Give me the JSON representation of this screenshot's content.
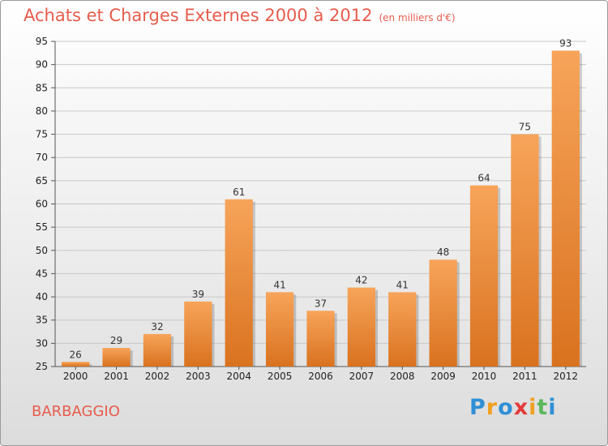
{
  "title": "Achats et Charges Externes 2000 à 2012",
  "unit": "(en milliers d'€)",
  "town": "BARBAGGIO",
  "logo": {
    "letters": [
      "P",
      "r",
      "o",
      "x",
      "i",
      "t",
      "i"
    ],
    "colors": [
      "#2f8fd6",
      "#f0a020",
      "#2f8fd6",
      "#e43b3b",
      "#f0a020",
      "#5cb85c",
      "#2f8fd6"
    ]
  },
  "colors": {
    "title": "#e65c4d",
    "bar_light": "#f7a45a",
    "bar_dark": "#d9721f",
    "grid": "#c8c8c8"
  },
  "chart_data": {
    "type": "bar",
    "title": "Achats et Charges Externes 2000 à 2012",
    "xlabel": "",
    "ylabel": "",
    "categories": [
      "2000",
      "2001",
      "2002",
      "2003",
      "2004",
      "2005",
      "2006",
      "2007",
      "2008",
      "2009",
      "2010",
      "2011",
      "2012"
    ],
    "values": [
      26,
      29,
      32,
      39,
      61,
      41,
      37,
      42,
      41,
      48,
      64,
      75,
      93
    ],
    "ylim": [
      25,
      95
    ],
    "yticks": [
      25,
      30,
      35,
      40,
      45,
      50,
      55,
      60,
      65,
      70,
      75,
      80,
      85,
      90,
      95
    ],
    "grid": true,
    "legend": "none"
  }
}
